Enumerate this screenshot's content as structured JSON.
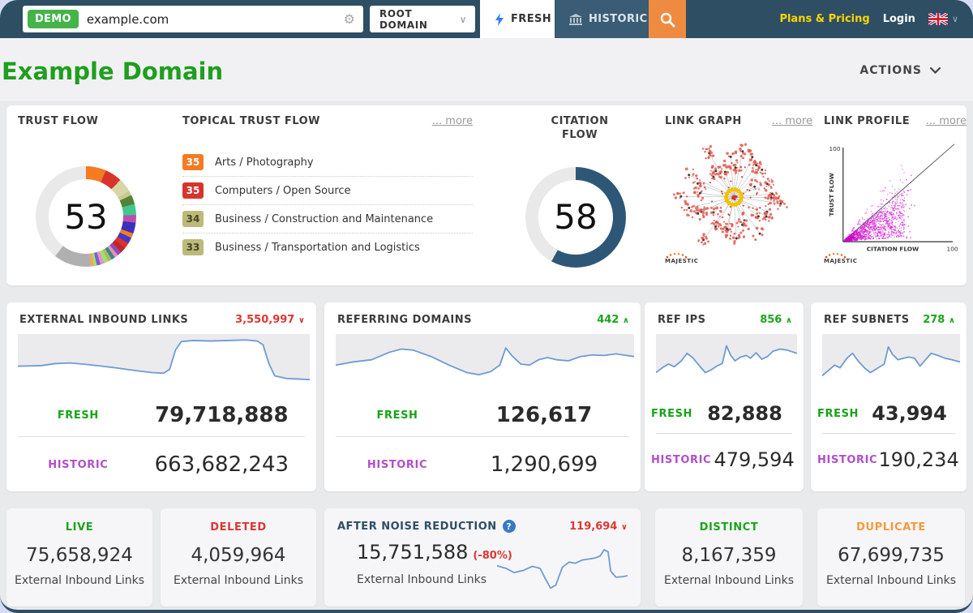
{
  "colors": {
    "fresh": "#17a317",
    "historic": "#b14fc9",
    "accent_navy": "#2d4e63",
    "accent_orange": "#ef8b40"
  },
  "topbar": {
    "demo_badge": "DEMO",
    "search_value": "example.com",
    "root_domain_select": "ROOT DOMAIN",
    "fresh_tab": "FRESH",
    "historic_tab": "HISTORIC",
    "plans_pricing_link": "Plans & Pricing",
    "login_link": "Login"
  },
  "header": {
    "title": "Example Domain",
    "actions_label": "ACTIONS"
  },
  "overview": {
    "trust_flow": {
      "title": "TRUST FLOW",
      "value": "53",
      "segments": [
        [
          "#f47b20",
          6.5
        ],
        [
          "#d8342c",
          5.5
        ],
        [
          "#d8d6a5",
          4.5
        ],
        [
          "#c9c98f",
          1.5
        ],
        [
          "#55813b",
          3
        ],
        [
          "#3fc98c",
          3.5
        ],
        [
          "#bb4fb0",
          2.5
        ],
        [
          "#3d2fbd",
          3.5
        ],
        [
          "#f47b20",
          1.5
        ],
        [
          "#4339c9",
          2
        ],
        [
          "#d8342c",
          1.8
        ],
        [
          "#c2242c",
          1.8
        ],
        [
          "#8a4fb0",
          1.4
        ],
        [
          "#e88fb7",
          1.2
        ],
        [
          "#2e8b8b",
          1.2
        ],
        [
          "#b5b36a",
          1.2
        ],
        [
          "#9fe06a",
          1.5
        ],
        [
          "#e88fd0",
          1.2
        ],
        [
          "#7a5fd0",
          1.2
        ],
        [
          "#9fe06a",
          1
        ],
        [
          "#f4a460",
          1
        ],
        [
          "#b0b0b0",
          12
        ],
        [
          "#e9e9e9",
          39.5
        ]
      ]
    },
    "topical_trust_flow": {
      "title": "TOPICAL TRUST FLOW",
      "more_link": "... more",
      "items": [
        {
          "score": "35",
          "color": "#f47b20",
          "text_color": "#ffffff",
          "label": "Arts / Photography"
        },
        {
          "score": "35",
          "color": "#d8342c",
          "text_color": "#ffffff",
          "label": "Computers / Open Source"
        },
        {
          "score": "34",
          "color": "#bcba78",
          "text_color": "#45452a",
          "label": "Business / Construction and Maintenance"
        },
        {
          "score": "33",
          "color": "#bcba78",
          "text_color": "#45452a",
          "label": "Business / Transportation and Logistics"
        }
      ]
    },
    "citation_flow": {
      "title": "CITATION FLOW",
      "value": "58",
      "segments": [
        [
          "#2e5777",
          58
        ],
        [
          "#e9e9e9",
          42
        ]
      ]
    },
    "link_graph": {
      "title": "LINK GRAPH",
      "more_link": "... more",
      "logo": "MAJESTIC"
    },
    "link_profile": {
      "title": "LINK PROFILE",
      "more_link": "... more",
      "y_axis": "TRUST FLOW",
      "x_axis": "CITATION FLOW",
      "y_max": "100",
      "x_max": "100",
      "logo": "MAJESTIC"
    }
  },
  "metrics": [
    {
      "title": "EXTERNAL INBOUND LINKS",
      "delta": "3,550,997",
      "delta_arrow": "∨",
      "delta_color": "#da3832",
      "fresh_label": "FRESH",
      "fresh_value": "79,718,888",
      "historic_label": "HISTORIC",
      "historic_value": "663,682,243",
      "spark": [
        [
          0,
          40
        ],
        [
          8,
          41
        ],
        [
          13,
          45
        ],
        [
          18,
          46
        ],
        [
          24,
          43
        ],
        [
          32,
          38
        ],
        [
          40,
          32
        ],
        [
          46,
          28
        ],
        [
          50,
          27
        ],
        [
          52,
          34
        ],
        [
          54,
          70
        ],
        [
          56,
          86
        ],
        [
          60,
          88
        ],
        [
          66,
          87
        ],
        [
          72,
          88
        ],
        [
          78,
          89
        ],
        [
          82,
          87
        ],
        [
          84,
          80
        ],
        [
          86,
          45
        ],
        [
          88,
          22
        ],
        [
          92,
          17
        ],
        [
          96,
          16
        ],
        [
          100,
          15
        ]
      ]
    },
    {
      "title": "REFERRING DOMAINS",
      "delta": "442",
      "delta_arrow": "∧",
      "delta_color": "#1ba51b",
      "fresh_label": "FRESH",
      "fresh_value": "126,617",
      "historic_label": "HISTORIC",
      "historic_value": "1,290,699",
      "spark": [
        [
          0,
          42
        ],
        [
          6,
          48
        ],
        [
          12,
          52
        ],
        [
          18,
          66
        ],
        [
          22,
          72
        ],
        [
          26,
          70
        ],
        [
          32,
          58
        ],
        [
          38,
          42
        ],
        [
          44,
          28
        ],
        [
          48,
          24
        ],
        [
          52,
          30
        ],
        [
          55,
          42
        ],
        [
          57,
          74
        ],
        [
          59,
          60
        ],
        [
          62,
          44
        ],
        [
          65,
          42
        ],
        [
          68,
          52
        ],
        [
          71,
          56
        ],
        [
          74,
          52
        ],
        [
          78,
          50
        ],
        [
          82,
          58
        ],
        [
          86,
          61
        ],
        [
          90,
          60
        ],
        [
          94,
          63
        ],
        [
          100,
          58
        ]
      ]
    },
    {
      "title": "REF IPS",
      "delta": "856",
      "delta_arrow": "∧",
      "delta_color": "#1ba51b",
      "fresh_label": "FRESH",
      "fresh_value": "82,888",
      "historic_label": "HISTORIC",
      "historic_value": "479,594",
      "spark": [
        [
          0,
          28
        ],
        [
          5,
          38
        ],
        [
          9,
          44
        ],
        [
          13,
          39
        ],
        [
          18,
          50
        ],
        [
          22,
          64
        ],
        [
          26,
          56
        ],
        [
          31,
          40
        ],
        [
          35,
          28
        ],
        [
          39,
          33
        ],
        [
          43,
          40
        ],
        [
          47,
          45
        ],
        [
          50,
          78
        ],
        [
          53,
          60
        ],
        [
          56,
          50
        ],
        [
          60,
          57
        ],
        [
          64,
          60
        ],
        [
          67,
          55
        ],
        [
          71,
          65
        ],
        [
          75,
          53
        ],
        [
          79,
          58
        ],
        [
          83,
          68
        ],
        [
          88,
          72
        ],
        [
          93,
          70
        ],
        [
          100,
          64
        ]
      ]
    },
    {
      "title": "REF SUBNETS",
      "delta": "278",
      "delta_arrow": "∧",
      "delta_color": "#1ba51b",
      "fresh_label": "FRESH",
      "fresh_value": "43,994",
      "historic_label": "HISTORIC",
      "historic_value": "190,234",
      "spark": [
        [
          0,
          22
        ],
        [
          5,
          33
        ],
        [
          9,
          42
        ],
        [
          13,
          37
        ],
        [
          18,
          55
        ],
        [
          22,
          64
        ],
        [
          26,
          50
        ],
        [
          31,
          36
        ],
        [
          35,
          28
        ],
        [
          40,
          36
        ],
        [
          45,
          44
        ],
        [
          48,
          76
        ],
        [
          51,
          62
        ],
        [
          55,
          52
        ],
        [
          59,
          55
        ],
        [
          63,
          57
        ],
        [
          67,
          55
        ],
        [
          71,
          40
        ],
        [
          75,
          52
        ],
        [
          79,
          64
        ],
        [
          84,
          60
        ],
        [
          89,
          55
        ],
        [
          94,
          52
        ],
        [
          100,
          48
        ]
      ]
    }
  ],
  "summary": {
    "live": {
      "label": "LIVE",
      "color": "#1ba51b",
      "value": "75,658,924",
      "sub": "External Inbound Links"
    },
    "deleted": {
      "label": "DELETED",
      "color": "#da3832",
      "value": "4,059,964",
      "sub": "External Inbound Links"
    },
    "noise": {
      "label": "AFTER NOISE REDUCTION",
      "help_icon": "?",
      "color": "#2d4e63",
      "delta": "119,694",
      "delta_arrow": "∨",
      "delta_color": "#da3832",
      "value": "15,751,588",
      "percent_change": "(-80%)",
      "percent_color": "#da3832",
      "sub": "External Inbound Links",
      "spark": [
        [
          0,
          55
        ],
        [
          7,
          50
        ],
        [
          13,
          42
        ],
        [
          20,
          46
        ],
        [
          27,
          54
        ],
        [
          33,
          50
        ],
        [
          37,
          30
        ],
        [
          41,
          12
        ],
        [
          45,
          18
        ],
        [
          50,
          52
        ],
        [
          55,
          62
        ],
        [
          60,
          60
        ],
        [
          65,
          66
        ],
        [
          70,
          68
        ],
        [
          75,
          70
        ],
        [
          79,
          74
        ],
        [
          82,
          86
        ],
        [
          85,
          82
        ],
        [
          87,
          45
        ],
        [
          91,
          33
        ],
        [
          96,
          34
        ],
        [
          100,
          36
        ]
      ]
    },
    "distinct": {
      "label": "DISTINCT",
      "color": "#1ba51b",
      "value": "8,167,359",
      "sub": "External Inbound Links"
    },
    "duplicate": {
      "label": "DUPLICATE",
      "color": "#f59a3c",
      "value": "67,699,735",
      "sub": "External Inbound Links"
    }
  }
}
